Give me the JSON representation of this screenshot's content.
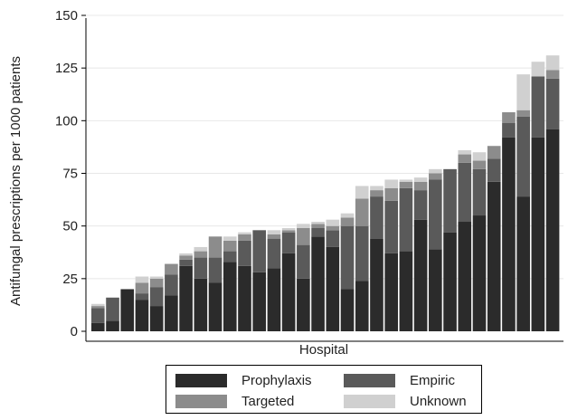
{
  "chart_data": {
    "type": "bar",
    "stacked": true,
    "title": "",
    "xlabel": "Hospital",
    "ylabel": "Antifungal prescriptions per 1000 patients",
    "ylim": [
      0,
      150
    ],
    "yticks": [
      0,
      25,
      50,
      75,
      100,
      125,
      150
    ],
    "grid": true,
    "legend_position": "bottom",
    "series": [
      {
        "name": "Prophylaxis",
        "color": "#2b2b2b",
        "values": [
          4,
          5,
          20,
          15,
          12,
          17,
          31,
          25,
          23,
          33,
          31,
          28,
          30,
          37,
          25,
          45,
          40,
          20,
          24,
          44,
          37,
          38,
          53,
          39,
          47,
          52,
          55,
          71,
          92,
          64,
          92,
          96
        ]
      },
      {
        "name": "Empiric",
        "color": "#5a5a5a",
        "values": [
          7,
          11,
          0,
          3,
          9,
          10,
          3,
          10,
          12,
          5,
          12,
          20,
          14,
          10,
          16,
          4,
          8,
          30,
          26,
          20,
          25,
          30,
          14,
          33,
          30,
          28,
          22,
          11,
          7,
          38,
          29,
          24
        ]
      },
      {
        "name": "Targeted",
        "color": "#8c8c8c",
        "values": [
          1,
          0,
          0,
          5,
          4,
          5,
          2,
          3,
          10,
          5,
          3,
          0,
          2,
          1,
          8,
          2,
          2,
          4,
          13,
          3,
          6,
          3,
          4,
          3,
          0,
          4,
          4,
          6,
          5,
          3,
          0,
          4
        ]
      },
      {
        "name": "Unknown",
        "color": "#d0d0d0",
        "values": [
          1,
          0,
          0,
          3,
          1,
          0,
          1,
          2,
          0,
          2,
          1,
          0,
          2,
          1,
          2,
          1,
          3,
          2,
          6,
          2,
          4,
          1,
          2,
          2,
          0,
          2,
          4,
          0,
          0,
          17,
          7,
          7
        ]
      }
    ]
  }
}
